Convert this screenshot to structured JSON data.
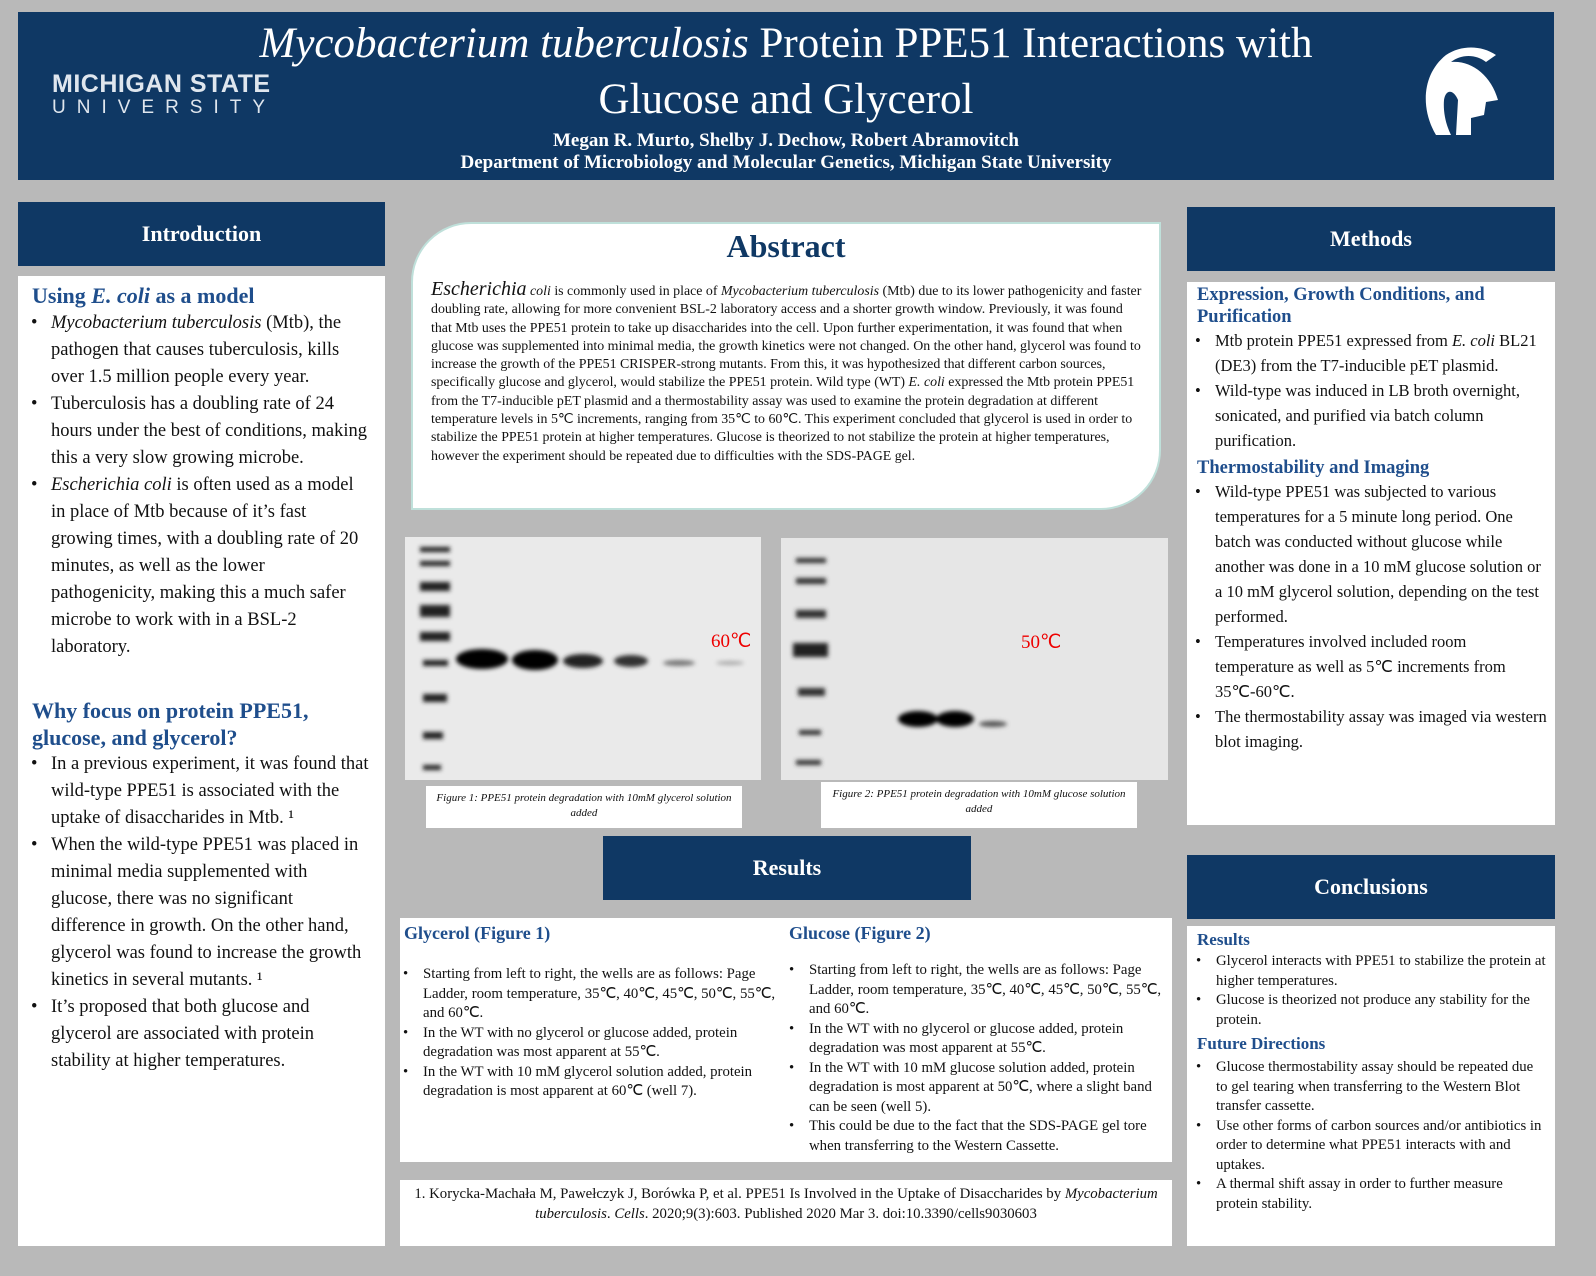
{
  "header": {
    "title_italic": "Mycobacterium tuberculosis",
    "title_rest": " Protein PPE51 Interactions with Glucose and Glycerol",
    "authors": "Megan R. Murto, Shelby J. Dechow, Robert Abramovitch",
    "affiliation": "Department of Microbiology and Molecular Genetics, Michigan State University",
    "logo_line1": "MICHIGAN STATE",
    "logo_line2": "UNIVERSITY",
    "brand_color": "#0f3864"
  },
  "introduction": {
    "heading": "Introduction",
    "sub1_pre": "Using ",
    "sub1_italic": "E. coli",
    "sub1_post": " as a model",
    "items1": [
      {
        "it": "Mycobacterium tuberculosis",
        "rest": " (Mtb), the pathogen that causes tuberculosis, kills over 1.5 million people every year."
      },
      {
        "it": "",
        "rest": "Tuberculosis has a doubling rate of 24 hours under the best of conditions, making this a very slow growing microbe."
      },
      {
        "it": "Escherichia coli",
        "rest": " is often used as a model in place of Mtb  because of it’s fast growing times, with a doubling rate of 20 minutes, as well as the lower pathogenicity, making this a much safer microbe to work with in a BSL-2 laboratory."
      }
    ],
    "sub2": "Why focus on protein PPE51, glucose, and glycerol?",
    "items2": [
      "In a previous experiment, it was found that wild-type PPE51 is associated with the uptake of disaccharides in Mtb. ¹",
      "When the wild-type PPE51 was placed in minimal media supplemented with glucose, there was no significant difference in growth. On the other hand, glycerol was found to increase the growth kinetics in several mutants. ¹",
      "It’s proposed that both glucose and glycerol are  associated with protein stability at higher temperatures."
    ]
  },
  "abstract": {
    "heading": "Abstract",
    "p1_big": "Escherichia",
    "p1_it": " coli",
    "p2": " is commonly used in place of ",
    "p2_it": "Mycobacterium tuberculosis",
    "p3": " (Mtb) due to its lower pathogenicity and faster doubling rate, allowing for more convenient BSL-2 laboratory access and a shorter growth window. Previously, it was found that Mtb uses the PPE51 protein to take up disaccharides into the cell. Upon further experimentation, it was found that when glucose was supplemented into minimal media, the growth kinetics were not changed. On the other hand, glycerol was found to increase the growth of the PPE51 CRISPER-strong mutants. From this, it was hypothesized that different carbon sources, specifically glucose and glycerol, would stabilize the PPE51 protein. Wild type (WT) ",
    "p3_it": "E. coli",
    "p4": " expressed the Mtb protein PPE51 from the T7-inducible pET plasmid and a thermostability assay was used to examine the protein degradation at different temperature levels in 5℃ increments, ranging from 35℃ to 60℃. This experiment concluded that glycerol is used in order to stabilize the PPE51 protein at higher temperatures. Glucose is theorized to not stabilize the protein at higher temperatures, however the experiment should be repeated due to difficulties with the SDS-PAGE gel."
  },
  "figures": [
    {
      "label": "60℃",
      "caption": "Figure 1: PPE51  protein degradation with 10mM glycerol solution added"
    },
    {
      "label": "50℃",
      "caption": "Figure 2:  PPE51 protein degradation with 10mM glucose solution added"
    }
  ],
  "results": {
    "heading": "Results",
    "glycerol": {
      "heading": "Glycerol (Figure 1)",
      "items": [
        "Starting from left to right, the wells are as follows: Page Ladder, room temperature, 35℃, 40℃, 45℃, 50℃, 55℃, and 60℃.",
        "In the WT with no glycerol or glucose added, protein degradation was most apparent at 55℃.",
        "In the WT with 10 mM glycerol solution added, protein degradation is most apparent at 60℃ (well 7)."
      ]
    },
    "glucose": {
      "heading": "Glucose (Figure 2)",
      "items": [
        "Starting from left to right, the wells are as follows: Page Ladder, room temperature, 35℃, 40℃, 45℃, 50℃, 55℃, and 60℃.",
        "In the WT with no glycerol or glucose added, protein degradation was most apparent at 55℃.",
        "In the WT with 10 mM glucose solution added, protein degradation is most apparent at 50℃, where a slight band can be seen (well 5).",
        "This could be due to the fact that the SDS-PAGE gel tore when transferring to the Western Cassette."
      ]
    }
  },
  "reference": {
    "a": "1.  Korycka-Machała M, Pawełczyk J, Borówka P, et al. PPE51 Is Involved in the Uptake of Disaccharides by ",
    "b_it": "Mycobacterium tuberculosis",
    "c": ". ",
    "d_it": "Cells",
    "e": ". 2020;9(3):603. Published 2020 Mar 3. doi:10.3390/cells9030603"
  },
  "methods": {
    "heading": "Methods",
    "sub1": "Expression, Growth Conditions, and Purification",
    "items1": [
      {
        "a": "Mtb protein PPE51 expressed from ",
        "it": "E. coli",
        "b": " BL21 (DE3) from the T7-inducible pET plasmid."
      },
      {
        "a": "Wild-type was induced in LB broth overnight, sonicated, and purified via batch column purification.",
        "it": "",
        "b": ""
      }
    ],
    "sub2": "Thermostability and Imaging",
    "items2": [
      "Wild-type PPE51 was subjected to various temperatures for a 5 minute long period. One batch was conducted without glucose while another was done in a 10 mM glucose solution or a  10 mM glycerol solution, depending on the test performed.",
      "Temperatures involved included room temperature as well as 5℃ increments from 35℃-60℃.",
      "The thermostability assay was imaged via western blot imaging."
    ]
  },
  "conclusions": {
    "heading": "Conclusions",
    "sub1": "Results",
    "items1": [
      "Glycerol interacts with PPE51 to stabilize the protein at higher temperatures.",
      "Glucose is theorized not produce any stability for the protein."
    ],
    "sub2": "Future Directions",
    "items2": [
      "Glucose thermostability assay should be repeated due to gel tearing when transferring to the Western Blot transfer cassette.",
      "Use other forms of carbon sources and/or antibiotics in order to determine what PPE51 interacts with and uptakes.",
      "A thermal shift assay in order to further measure protein stability."
    ]
  }
}
